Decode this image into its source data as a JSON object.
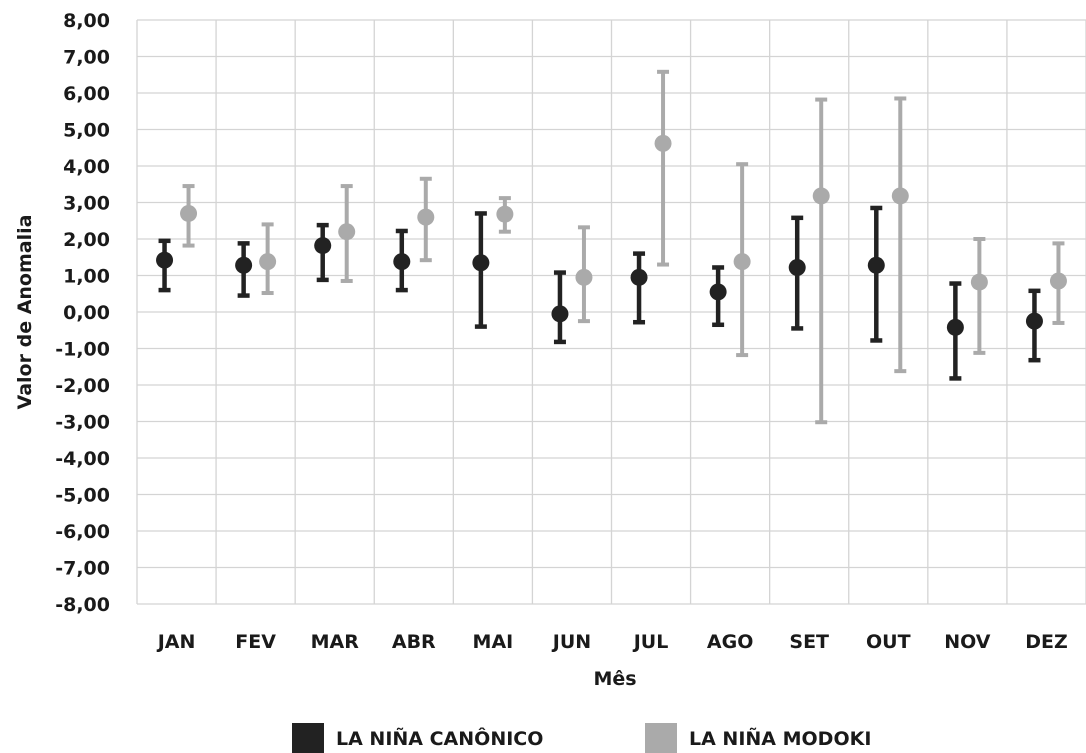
{
  "chart_data": {
    "type": "scatter",
    "xlabel": "Mês",
    "ylabel": "Valor de Anomalia",
    "categories": [
      "JAN",
      "FEV",
      "MAR",
      "ABR",
      "MAI",
      "JUN",
      "JUL",
      "AGO",
      "SET",
      "OUT",
      "NOV",
      "DEZ"
    ],
    "y_ticks": [
      "8,00",
      "7,00",
      "6,00",
      "5,00",
      "4,00",
      "3,00",
      "2,00",
      "1,00",
      "0,00",
      "-1,00",
      "-2,00",
      "-3,00",
      "-4,00",
      "-5,00",
      "-6,00",
      "-7,00",
      "-8,00"
    ],
    "ylim": [
      -8,
      8
    ],
    "grid": true,
    "legend_position": "bottom",
    "series": [
      {
        "name": "LA NIÑA CANÔNICO",
        "color": "#222222",
        "values": [
          1.42,
          1.28,
          1.82,
          1.38,
          1.35,
          -0.05,
          0.95,
          0.55,
          1.22,
          1.28,
          -0.42,
          -0.25
        ],
        "lower": [
          0.6,
          0.45,
          0.88,
          0.6,
          -0.4,
          -0.82,
          -0.28,
          -0.35,
          -0.45,
          -0.78,
          -1.82,
          -1.32
        ],
        "upper": [
          1.95,
          1.88,
          2.38,
          2.22,
          2.7,
          1.08,
          1.6,
          1.22,
          2.58,
          2.85,
          0.78,
          0.58
        ]
      },
      {
        "name": "LA NIÑA MODOKI",
        "color": "#aaaaaa",
        "values": [
          2.7,
          1.38,
          2.2,
          2.6,
          2.68,
          0.95,
          4.62,
          1.38,
          3.18,
          3.18,
          0.82,
          0.85
        ],
        "lower": [
          1.82,
          0.52,
          0.85,
          1.42,
          2.2,
          -0.25,
          1.3,
          -1.18,
          -3.02,
          -1.62,
          -1.12,
          -0.3
        ],
        "upper": [
          3.45,
          2.4,
          3.45,
          3.65,
          3.12,
          2.32,
          6.58,
          4.05,
          5.82,
          5.85,
          2.0,
          1.88
        ]
      }
    ]
  }
}
